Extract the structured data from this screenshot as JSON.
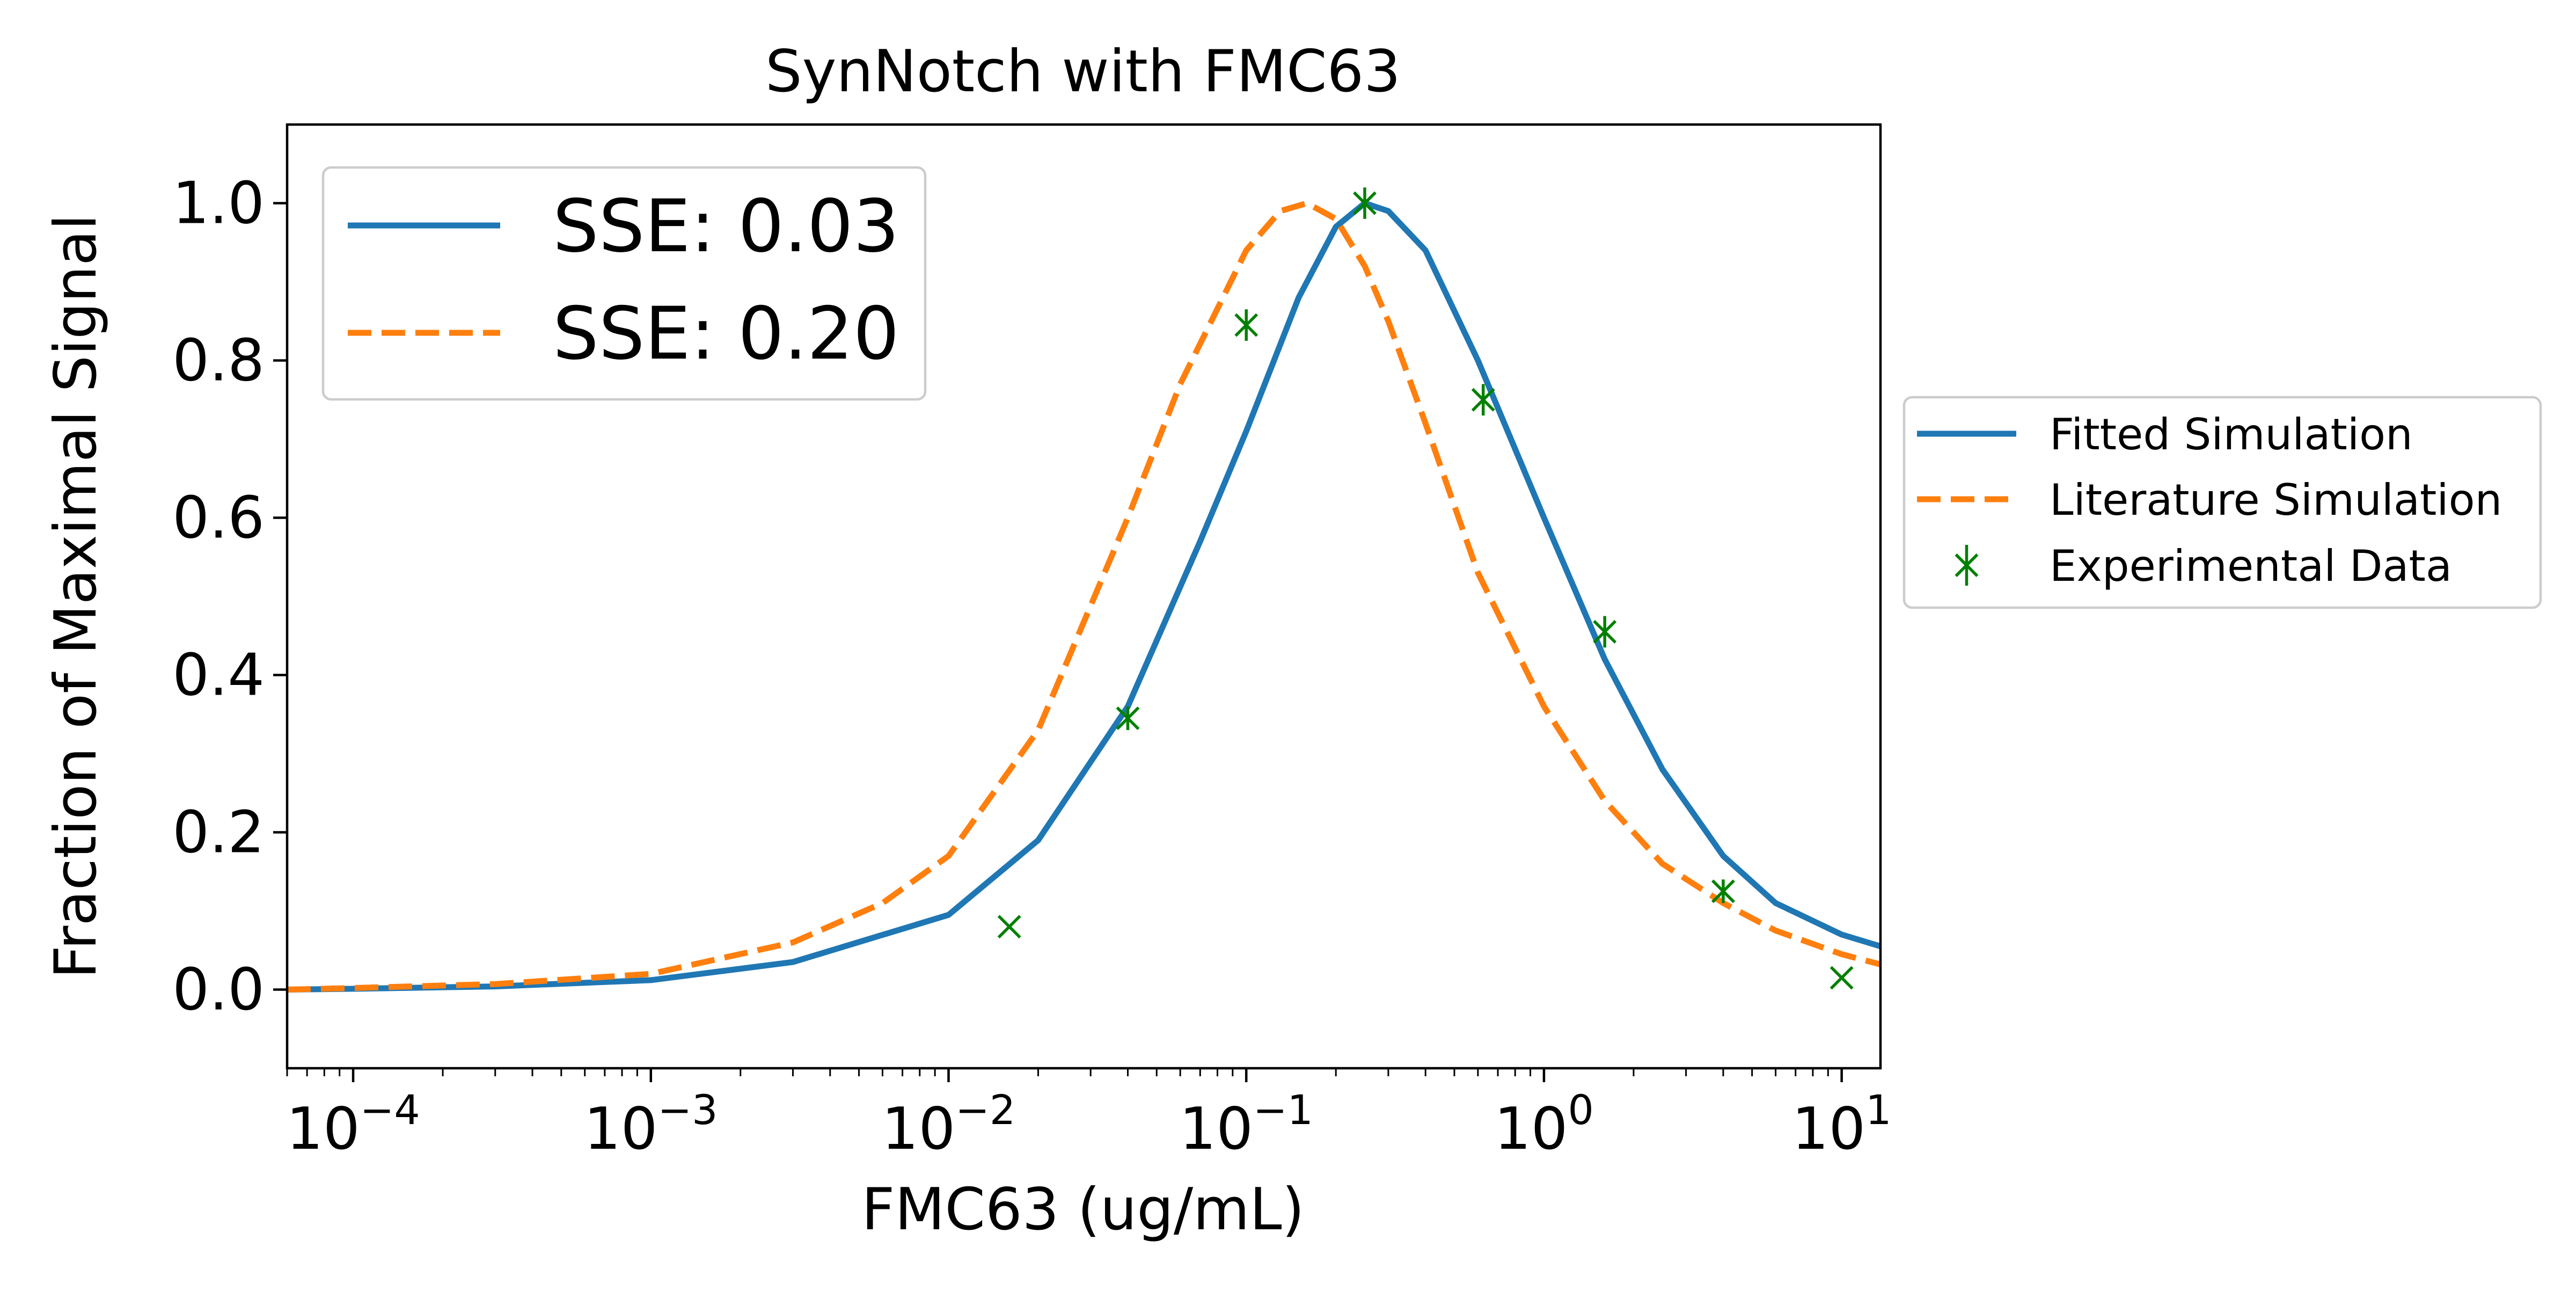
{
  "chart_data": {
    "type": "line",
    "title": "SynNotch with FMC63",
    "xlabel": "FMC63 (ug/mL)",
    "ylabel": "Fraction of Maximal Signal",
    "xscale": "log",
    "xlim": [
      6e-05,
      13.5
    ],
    "ylim": [
      -0.1,
      1.1
    ],
    "grid": false,
    "x_ticks": [
      {
        "value": 0.0001,
        "base": "10",
        "exp": "−4"
      },
      {
        "value": 0.001,
        "base": "10",
        "exp": "−3"
      },
      {
        "value": 0.01,
        "base": "10",
        "exp": "−2"
      },
      {
        "value": 0.1,
        "base": "10",
        "exp": "−1"
      },
      {
        "value": 1,
        "base": "10",
        "exp": "0"
      },
      {
        "value": 10,
        "base": "10",
        "exp": "1"
      }
    ],
    "y_ticks": [
      {
        "value": 0.0,
        "label": "0.0"
      },
      {
        "value": 0.2,
        "label": "0.2"
      },
      {
        "value": 0.4,
        "label": "0.4"
      },
      {
        "value": 0.6,
        "label": "0.6"
      },
      {
        "value": 0.8,
        "label": "0.8"
      },
      {
        "value": 1.0,
        "label": "1.0"
      }
    ],
    "series": [
      {
        "name": "Fitted Simulation",
        "kind": "line",
        "style": "solid",
        "color": "#1f77b4",
        "x": [
          6e-05,
          0.0001,
          0.0003,
          0.001,
          0.003,
          0.01,
          0.02,
          0.04,
          0.07,
          0.1,
          0.15,
          0.2,
          0.25,
          0.3,
          0.4,
          0.6,
          1.0,
          1.6,
          2.5,
          4.0,
          6.0,
          10.0,
          13.5
        ],
        "y": [
          0.0,
          0.001,
          0.004,
          0.012,
          0.035,
          0.095,
          0.19,
          0.36,
          0.57,
          0.71,
          0.88,
          0.97,
          1.0,
          0.99,
          0.94,
          0.8,
          0.6,
          0.42,
          0.28,
          0.17,
          0.11,
          0.07,
          0.055
        ]
      },
      {
        "name": "Literature Simulation",
        "kind": "line",
        "style": "dashed",
        "color": "#ff7f0e",
        "x": [
          6e-05,
          0.0001,
          0.0003,
          0.001,
          0.003,
          0.006,
          0.01,
          0.02,
          0.04,
          0.06,
          0.1,
          0.13,
          0.16,
          0.2,
          0.25,
          0.3,
          0.4,
          0.6,
          1.0,
          1.6,
          2.5,
          4.0,
          6.0,
          10.0,
          13.5
        ],
        "y": [
          0.0,
          0.002,
          0.007,
          0.02,
          0.06,
          0.11,
          0.17,
          0.33,
          0.6,
          0.77,
          0.94,
          0.99,
          1.0,
          0.98,
          0.92,
          0.85,
          0.72,
          0.53,
          0.36,
          0.24,
          0.16,
          0.11,
          0.075,
          0.045,
          0.032
        ]
      },
      {
        "name": "Experimental Data",
        "kind": "points",
        "marker": "x",
        "color": "#008000",
        "x": [
          0.016,
          0.04,
          0.1,
          0.25,
          0.625,
          1.6,
          4.0,
          10.0
        ],
        "y": [
          0.08,
          0.345,
          0.845,
          1.0,
          0.75,
          0.455,
          0.125,
          0.015
        ],
        "err": [
          0.0,
          0.015,
          0.02,
          0.02,
          0.02,
          0.02,
          0.015,
          0.0
        ]
      }
    ],
    "legends": [
      {
        "placement": "upper-left inside axes",
        "entries": [
          {
            "label": "SSE: 0.03",
            "style": "solid",
            "color": "#1f77b4"
          },
          {
            "label": "SSE: 0.20",
            "style": "dashed",
            "color": "#ff7f0e"
          }
        ]
      },
      {
        "placement": "center-right outside axes",
        "entries": [
          {
            "label": "Fitted Simulation",
            "style": "solid",
            "color": "#1f77b4"
          },
          {
            "label": "Literature Simulation",
            "style": "dashed",
            "color": "#ff7f0e"
          },
          {
            "label": "Experimental Data",
            "style": "marker",
            "color": "#008000"
          }
        ]
      }
    ]
  }
}
